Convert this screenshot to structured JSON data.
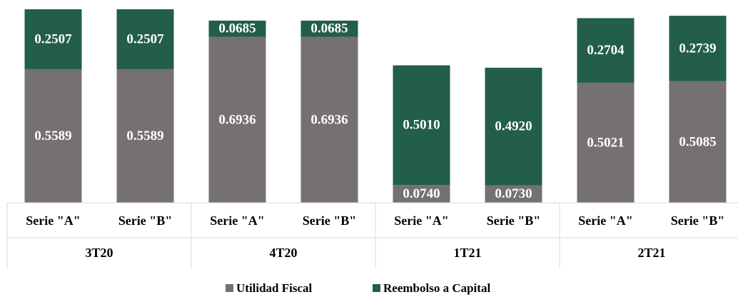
{
  "chart_data": {
    "type": "stacked-bar",
    "categories": [
      "Serie \"A\"",
      "Serie \"B\"",
      "Serie \"A\"",
      "Serie \"B\"",
      "Serie \"A\"",
      "Serie \"B\"",
      "Serie \"A\"",
      "Serie \"B\""
    ],
    "groups": [
      "3T20",
      "4T20",
      "1T21",
      "2T21"
    ],
    "series": [
      {
        "name": "Utilidad Fiscal",
        "color": "#767171",
        "values": [
          0.5589,
          0.5589,
          0.6936,
          0.6936,
          0.074,
          0.073,
          0.5021,
          0.5085
        ],
        "value_labels": [
          "0.5589",
          "0.5589",
          "0.6936",
          "0.6936",
          "0.0740",
          "0.0730",
          "0.5021",
          "0.5085"
        ]
      },
      {
        "name": "Reembolso a Capital",
        "color": "#225e48",
        "values": [
          0.2507,
          0.2507,
          0.0685,
          0.0685,
          0.501,
          0.492,
          0.2704,
          0.2739
        ],
        "value_labels": [
          "0.2507",
          "0.2507",
          "0.0685",
          "0.0685",
          "0.5010",
          "0.4920",
          "0.2704",
          "0.2739"
        ]
      }
    ],
    "legend": "bottom"
  }
}
